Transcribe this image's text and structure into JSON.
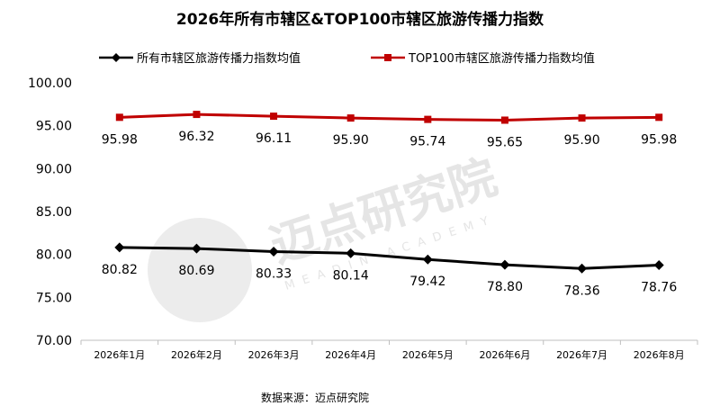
{
  "chart_data": {
    "type": "line",
    "title": "2026年所有市辖区&TOP100市辖区旅游传播力指数",
    "categories": [
      "2026年1月",
      "2026年2月",
      "2026年3月",
      "2026年4月",
      "2026年5月",
      "2026年6月",
      "2026年7月",
      "2026年8月"
    ],
    "series": [
      {
        "name": "所有市辖区旅游传播力指数均值",
        "color": "#000000",
        "marker": "diamond",
        "values": [
          80.82,
          80.69,
          80.33,
          80.14,
          79.42,
          78.8,
          78.36,
          78.76
        ],
        "labels": [
          "80.82",
          "80.69",
          "80.33",
          "80.14",
          "79.42",
          "78.80",
          "78.36",
          "78.76"
        ]
      },
      {
        "name": "TOP100市辖区旅游传播力指数均值",
        "color": "#c00000",
        "marker": "square",
        "values": [
          95.98,
          96.32,
          96.11,
          95.9,
          95.74,
          95.65,
          95.9,
          95.98
        ],
        "labels": [
          "95.98",
          "96.32",
          "96.11",
          "95.90",
          "95.74",
          "95.65",
          "95.90",
          "95.98"
        ]
      }
    ],
    "ylim": [
      70,
      100
    ],
    "yticks": [
      "70.00",
      "75.00",
      "80.00",
      "85.00",
      "90.00",
      "95.00",
      "100.00"
    ],
    "grid": false,
    "legend": "top"
  },
  "source": "数据来源：迈点研究院",
  "watermark": {
    "main": "迈点研究院",
    "sub": "MEADIN ACADEMY"
  }
}
